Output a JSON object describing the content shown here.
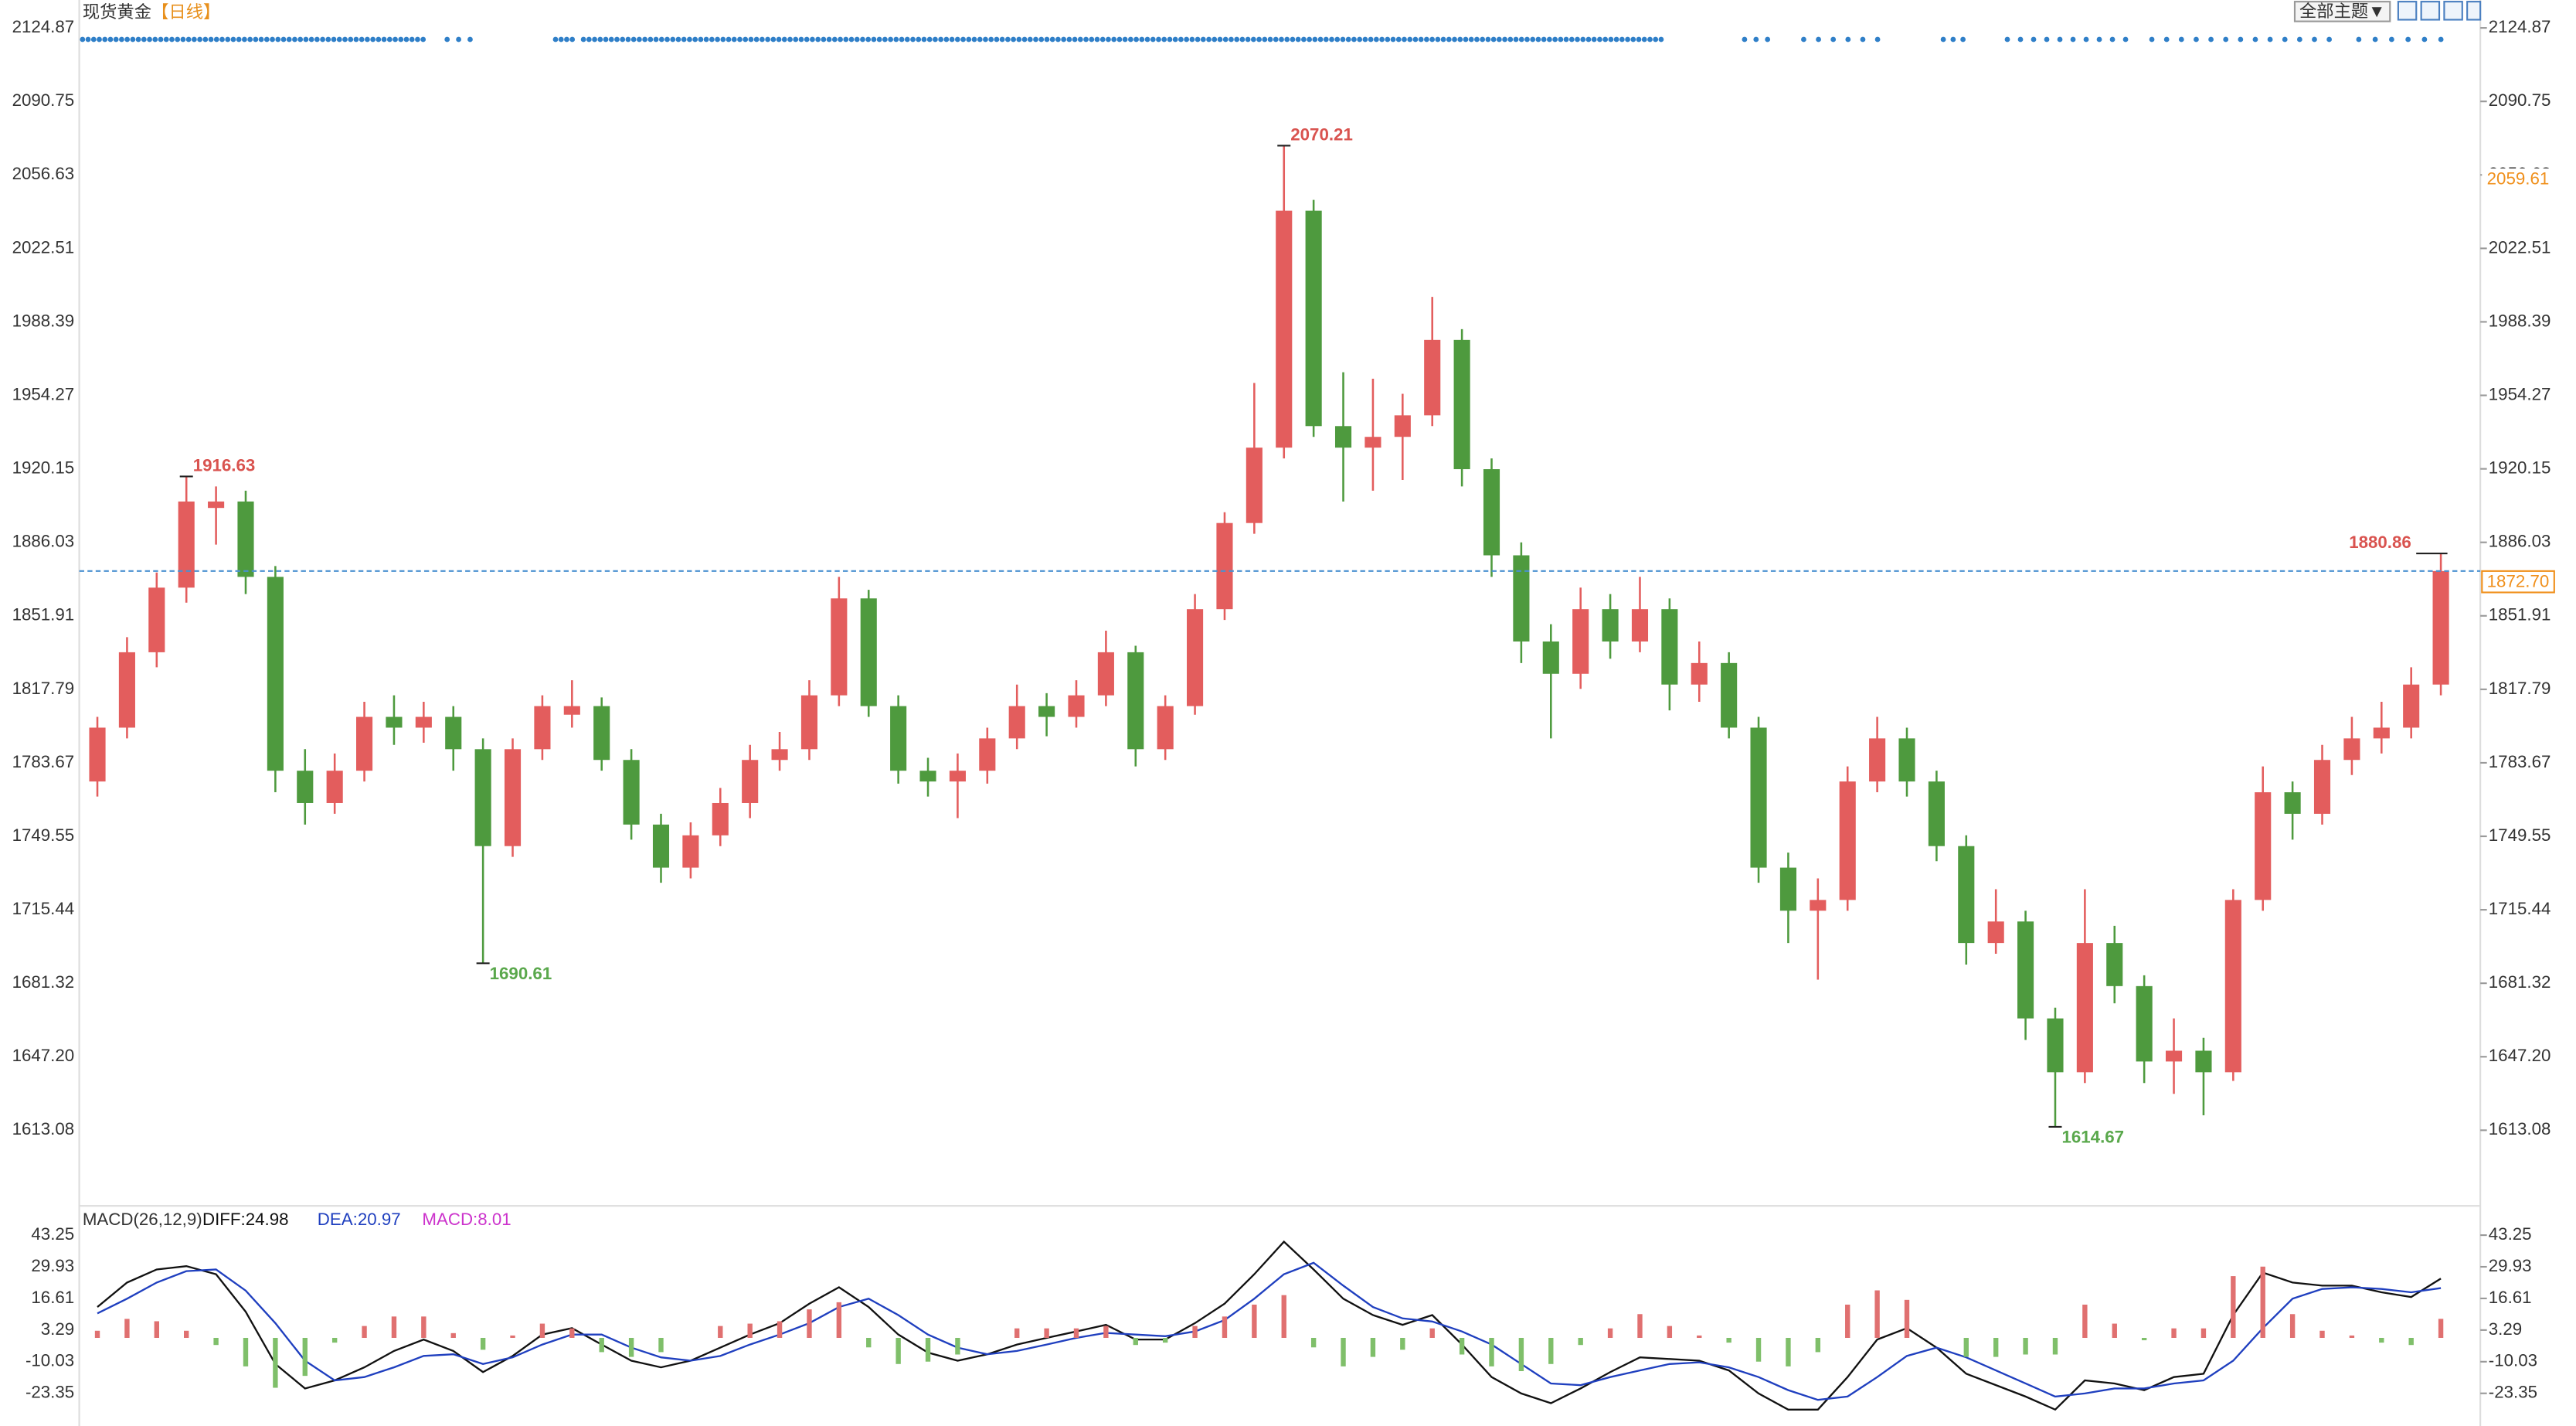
{
  "header": {
    "title": "现货黄金",
    "period": "【日线】",
    "theme_button": "全部主题▼"
  },
  "chart_data": [
    {
      "type": "candlestick",
      "open": [
        1775,
        1800,
        1835,
        1865,
        1902,
        1905,
        1870,
        1780,
        1765,
        1780,
        1805,
        1800,
        1805,
        1790,
        1745,
        1790,
        1806,
        1810,
        1785,
        1755,
        1735,
        1750,
        1765,
        1785,
        1790,
        1815,
        1860,
        1810,
        1780,
        1775,
        1780,
        1795,
        1810,
        1805,
        1815,
        1835,
        1790,
        1810,
        1855,
        1895,
        1930,
        2040,
        1940,
        1930,
        1935,
        1945,
        1980,
        1920,
        1880,
        1840,
        1825,
        1855,
        1840,
        1855,
        1820,
        1830,
        1800,
        1735,
        1715,
        1720,
        1775,
        1795,
        1775,
        1745,
        1700,
        1710,
        1665,
        1640,
        1700,
        1680,
        1645,
        1650,
        1640,
        1720,
        1770,
        1760,
        1785,
        1795,
        1800,
        1820
      ],
      "high": [
        1805,
        1842,
        1872,
        1916.63,
        1912,
        1910,
        1875,
        1790,
        1788,
        1812,
        1815,
        1812,
        1810,
        1795,
        1795,
        1815,
        1822,
        1814,
        1790,
        1760,
        1756,
        1772,
        1792,
        1798,
        1822,
        1870,
        1864,
        1815,
        1786,
        1788,
        1800,
        1820,
        1816,
        1822,
        1845,
        1838,
        1815,
        1862,
        1900,
        1960,
        2070.21,
        2045,
        1965,
        1962,
        1955,
        2000,
        1985,
        1925,
        1886,
        1848,
        1865,
        1862,
        1870,
        1860,
        1840,
        1835,
        1805,
        1742,
        1730,
        1782,
        1805,
        1800,
        1780,
        1750,
        1725,
        1715,
        1670,
        1725,
        1708,
        1685,
        1665,
        1656,
        1725,
        1782,
        1775,
        1792,
        1805,
        1812,
        1828,
        1880.86
      ],
      "low": [
        1768,
        1795,
        1828,
        1858,
        1885,
        1862,
        1770,
        1755,
        1760,
        1775,
        1792,
        1793,
        1780,
        1690.61,
        1740,
        1785,
        1800,
        1780,
        1748,
        1728,
        1730,
        1745,
        1758,
        1780,
        1785,
        1810,
        1805,
        1774,
        1768,
        1758,
        1774,
        1790,
        1796,
        1800,
        1810,
        1782,
        1785,
        1806,
        1850,
        1890,
        1925,
        1935,
        1905,
        1910,
        1915,
        1940,
        1912,
        1870,
        1830,
        1795,
        1818,
        1832,
        1835,
        1808,
        1812,
        1795,
        1728,
        1700,
        1683,
        1715,
        1770,
        1768,
        1738,
        1690,
        1695,
        1655,
        1614.67,
        1635,
        1672,
        1635,
        1630,
        1620,
        1636,
        1715,
        1748,
        1755,
        1778,
        1788,
        1795,
        1815
      ],
      "close": [
        1800,
        1835,
        1865,
        1905,
        1905,
        1870,
        1780,
        1765,
        1780,
        1805,
        1800,
        1805,
        1790,
        1745,
        1790,
        1810,
        1810,
        1785,
        1755,
        1735,
        1750,
        1765,
        1785,
        1790,
        1815,
        1860,
        1810,
        1780,
        1775,
        1780,
        1795,
        1810,
        1805,
        1815,
        1835,
        1790,
        1810,
        1855,
        1895,
        1930,
        2040,
        1940,
        1930,
        1935,
        1945,
        1980,
        1920,
        1880,
        1840,
        1825,
        1855,
        1840,
        1855,
        1820,
        1830,
        1800,
        1735,
        1715,
        1720,
        1775,
        1795,
        1775,
        1745,
        1700,
        1710,
        1665,
        1640,
        1700,
        1680,
        1645,
        1650,
        1640,
        1720,
        1770,
        1760,
        1785,
        1795,
        1800,
        1820,
        1872.7
      ],
      "up_color": "#e35d5d",
      "down_color": "#4e9a3e",
      "ylim": [
        1579.5,
        2130.2
      ],
      "yticks": [
        2124.87,
        2090.75,
        2056.63,
        2022.51,
        1988.39,
        1954.27,
        1920.15,
        1886.03,
        1851.91,
        1817.79,
        1783.67,
        1749.55,
        1715.44,
        1681.32,
        {
          "value": 1647.2,
          "label": "1647.20"
        },
        1613.08
      ],
      "highs": [
        1916.63,
        2070.21,
        1880.86
      ],
      "high_color": "#d9534f",
      "lows": [
        1690.61,
        1614.67
      ],
      "low_color": "#5aa84c",
      "last_price": {
        "value": 1872.7,
        "label": "1872.70"
      },
      "last_color": "#f0901c",
      "price_line_color": "#4a90d0",
      "marker_label": 2059.61
    },
    {
      "type": "macd",
      "subtitle": "MACD(26,12,9)",
      "ylim": [
        -37.1,
        54.2
      ],
      "yticks": [
        43.25,
        29.93,
        16.61,
        3.29,
        -10.03,
        -23.35
      ],
      "series": [
        {
          "name": "DIFF:24.98",
          "color": "#111111",
          "values": [
            13.0,
            23.3,
            28.8,
            30.2,
            26.8,
            11.0,
            -11.0,
            -21.3,
            -17.9,
            -12.4,
            -5.5,
            -0.7,
            -5.5,
            -14.4,
            -7.6,
            1.4,
            4.1,
            -2.8,
            -9.6,
            -12.4,
            -9.6,
            -4.1,
            1.4,
            6.2,
            14.4,
            21.3,
            13.0,
            1.4,
            -6.2,
            -9.6,
            -6.9,
            -2.8,
            0.0,
            2.7,
            5.5,
            -0.7,
            -0.7,
            6.2,
            14.4,
            26.8,
            40.5,
            28.8,
            16.5,
            9.6,
            5.5,
            9.6,
            -2.8,
            -16.5,
            -23.4,
            -27.5,
            -21.3,
            -14.4,
            -8.2,
            -8.9,
            -9.6,
            -13.7,
            -23.4,
            -30.2,
            -30.2,
            -16.5,
            -0.7,
            4.1,
            -4.1,
            -15.1,
            -19.9,
            -24.7,
            -30.2,
            -17.9,
            -19.2,
            -22.0,
            -16.5,
            -15.1,
            9.6,
            27.5,
            23.3,
            22.0,
            22.0,
            19.2,
            17.2,
            24.98
          ]
        },
        {
          "name": "DEA:20.97",
          "color": "#1f3fbf",
          "values": [
            10.3,
            16.5,
            23.3,
            28.1,
            28.8,
            19.9,
            6.2,
            -9.6,
            -17.9,
            -16.5,
            -12.4,
            -7.6,
            -6.9,
            -11.0,
            -8.2,
            -2.8,
            1.4,
            1.4,
            -4.1,
            -8.2,
            -9.6,
            -7.6,
            -2.8,
            1.4,
            6.2,
            13.0,
            16.5,
            9.6,
            1.4,
            -4.1,
            -6.9,
            -5.5,
            -2.8,
            0.0,
            2.1,
            1.4,
            0.7,
            2.7,
            7.5,
            16.5,
            26.8,
            31.6,
            22.0,
            13.0,
            8.2,
            6.9,
            2.7,
            -2.8,
            -11.0,
            -19.2,
            -19.9,
            -16.5,
            -13.7,
            -11.0,
            -10.3,
            -12.4,
            -16.5,
            -22.0,
            -26.1,
            -24.7,
            -16.5,
            -7.6,
            -4.1,
            -8.2,
            -13.7,
            -19.2,
            -24.7,
            -23.4,
            -21.3,
            -21.3,
            -19.2,
            -17.9,
            -9.6,
            4.1,
            16.5,
            20.6,
            21.3,
            20.6,
            19.2,
            20.97
          ]
        },
        {
          "name": "MACD:8.01",
          "color": "#cc33cc",
          "bars": true,
          "up_color": "#e07070",
          "down_color": "#7fbf6a",
          "values": [
            3,
            8,
            7,
            3,
            -3,
            -12,
            -21,
            -16,
            -2,
            5,
            9,
            9,
            2,
            -5,
            1,
            6,
            4,
            -6,
            -8,
            -6,
            0,
            5,
            6,
            7,
            12,
            15,
            -4,
            -11,
            -10,
            -7,
            0,
            4,
            4,
            4,
            5,
            -3,
            -2,
            5,
            9,
            14,
            18,
            -4,
            -12,
            -8,
            -5,
            4,
            -7,
            -12,
            -14,
            -11,
            -3,
            4,
            10,
            5,
            1,
            -2,
            -10,
            -12,
            -6,
            14,
            20,
            16,
            0,
            -8,
            -8,
            -7,
            -7,
            14,
            6,
            -1,
            4,
            4,
            26,
            30,
            10,
            3,
            1,
            -2,
            -3,
            8.01
          ]
        }
      ]
    }
  ]
}
